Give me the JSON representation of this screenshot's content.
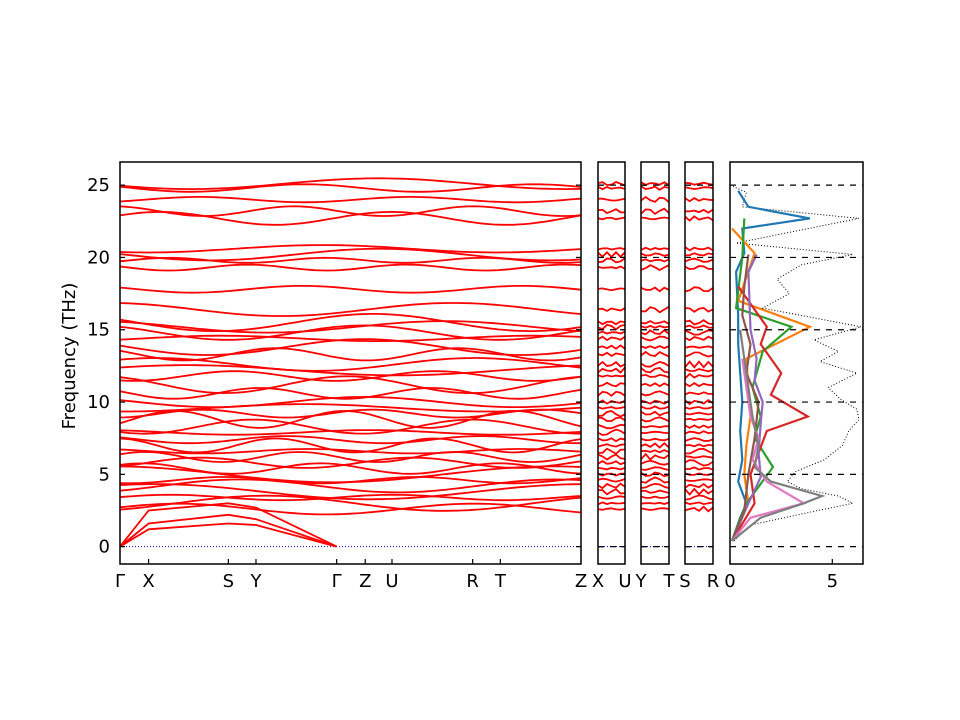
{
  "chart_data": [
    {
      "type": "line",
      "name": "phonon-band-structure",
      "ylabel": "Frequency (THz)",
      "ylim": [
        -1.2,
        26.6
      ],
      "yticks": [
        0,
        5,
        10,
        15,
        20,
        25
      ],
      "segments": [
        {
          "labels": [
            "Γ",
            "X",
            "S",
            "Y",
            "Γ",
            "Z",
            "U",
            "R",
            "T",
            "Z"
          ],
          "label_fracs": [
            0,
            0.062,
            0.235,
            0.295,
            0.47,
            0.532,
            0.59,
            0.765,
            0.825,
            1.0
          ],
          "grid_ticks": [
            0.062,
            0.235,
            0.295,
            0.47,
            0.532,
            0.59,
            0.765,
            0.825
          ]
        },
        {
          "labels": [
            "X",
            "U"
          ],
          "label_fracs": [
            0,
            1
          ]
        },
        {
          "labels": [
            "Y",
            "T"
          ],
          "label_fracs": [
            0,
            1
          ]
        },
        {
          "labels": [
            "S",
            "R"
          ],
          "label_fracs": [
            0,
            1
          ]
        }
      ],
      "band_color": "#ff0000",
      "zero_line_color": "#0000cc",
      "acoustic_branches": [
        {
          "x": [
            0,
            0.062,
            0.235,
            0.295,
            0.47
          ],
          "y": [
            0,
            2.5,
            3.0,
            2.7,
            0
          ]
        },
        {
          "x": [
            0,
            0.062,
            0.235,
            0.295,
            0.47
          ],
          "y": [
            0,
            1.6,
            2.2,
            1.9,
            0
          ]
        },
        {
          "x": [
            0,
            0.062,
            0.235,
            0.295,
            0.47
          ],
          "y": [
            0,
            1.2,
            1.6,
            1.5,
            0
          ]
        }
      ],
      "band_levels": [
        25.1,
        24.8,
        24.0,
        23.2,
        22.7,
        20.6,
        20.2,
        19.8,
        19.3,
        17.8,
        16.4,
        15.5,
        15.2,
        14.8,
        14.4,
        13.8,
        13.3,
        12.6,
        12.2,
        11.8,
        11.2,
        10.6,
        10.0,
        9.6,
        9.2,
        8.8,
        8.3,
        7.9,
        7.4,
        7.0,
        6.6,
        6.2,
        5.8,
        5.4,
        5.0,
        4.6,
        4.2,
        3.8,
        3.4,
        3.0,
        2.6
      ]
    },
    {
      "type": "line",
      "name": "phonon-dos",
      "xlim": [
        0,
        6.5
      ],
      "xticks": [
        0,
        5
      ],
      "ylim": [
        -1.2,
        26.6
      ],
      "total_dos": {
        "style": "dotted",
        "color": "#000000",
        "freq": [
          0.4,
          1.5,
          2.5,
          3.0,
          3.5,
          4.0,
          4.5,
          5.2,
          6.0,
          7.0,
          8.0,
          8.8,
          9.5,
          10.2,
          11.0,
          12.0,
          12.8,
          13.5,
          14.3,
          15.2,
          16.5,
          17.5,
          18.5,
          19.5,
          20.2,
          21.0,
          22.7,
          23.5,
          24.5,
          25.0
        ],
        "dos": [
          0.2,
          1.0,
          4.3,
          6.0,
          5.3,
          3.5,
          2.8,
          3.2,
          4.6,
          5.5,
          5.8,
          6.3,
          6.2,
          5.4,
          4.8,
          6.2,
          4.4,
          5.3,
          4.1,
          6.4,
          1.6,
          2.9,
          2.3,
          3.5,
          6.0,
          0.3,
          6.3,
          0.6,
          0.8,
          0.0
        ]
      },
      "partial_dos": [
        {
          "color": "#1f77b4",
          "freq": [
            0.4,
            2.0,
            3.0,
            4.5,
            6.0,
            8.0,
            10.0,
            12.0,
            14.0,
            16.0,
            19.0,
            20.3,
            22.0,
            22.7,
            23.5,
            24.6
          ],
          "dos": [
            0.1,
            0.5,
            0.8,
            0.4,
            0.6,
            0.5,
            0.6,
            0.5,
            0.4,
            0.4,
            0.3,
            0.7,
            0.6,
            3.9,
            0.9,
            0.4
          ]
        },
        {
          "color": "#ff7f0e",
          "freq": [
            0.4,
            3.0,
            5.0,
            7.0,
            9.0,
            11.0,
            13.0,
            15.2,
            17.0,
            20.3,
            22.0
          ],
          "dos": [
            0.1,
            0.9,
            0.7,
            0.8,
            1.0,
            0.9,
            0.8,
            3.9,
            0.4,
            1.2,
            0.1
          ]
        },
        {
          "color": "#2ca02c",
          "freq": [
            0.4,
            3.0,
            5.5,
            7.5,
            9.0,
            11.0,
            13.5,
            15.2,
            16.5,
            20.0,
            22.7
          ],
          "dos": [
            0.1,
            0.8,
            2.1,
            1.2,
            1.5,
            1.1,
            1.6,
            3.0,
            0.3,
            0.6,
            0.7
          ]
        },
        {
          "color": "#d62728",
          "freq": [
            0.4,
            3.0,
            5.0,
            8.0,
            9.0,
            10.5,
            12.0,
            14.0,
            15.2,
            18.0
          ],
          "dos": [
            0.1,
            1.2,
            1.0,
            1.8,
            3.8,
            2.0,
            2.5,
            1.5,
            1.8,
            0.4
          ]
        },
        {
          "color": "#9467bd",
          "freq": [
            0.4,
            3.0,
            4.8,
            6.5,
            8.5,
            10.0,
            11.5,
            13.0,
            15.0,
            19.0,
            20.2
          ],
          "dos": [
            0.1,
            0.9,
            1.5,
            1.4,
            1.5,
            1.6,
            1.2,
            1.3,
            1.0,
            0.9,
            1.3
          ]
        },
        {
          "color": "#8c564b",
          "freq": [
            0.4,
            2.5,
            5.0,
            7.5,
            10.0,
            12.0,
            14.0,
            16.0,
            18.0,
            20.2
          ],
          "dos": [
            0.1,
            0.7,
            0.9,
            1.2,
            1.4,
            0.8,
            1.0,
            0.6,
            0.7,
            0.9
          ]
        },
        {
          "color": "#e377c2",
          "freq": [
            0.4,
            2.0,
            3.0,
            4.5,
            6.0,
            7.5,
            9.0,
            11.0,
            13.0
          ],
          "dos": [
            0.1,
            1.0,
            3.6,
            1.8,
            1.1,
            1.4,
            1.0,
            0.8,
            0.6
          ]
        },
        {
          "color": "#7f7f7f",
          "freq": [
            0.4,
            2.0,
            3.0,
            3.5,
            4.5,
            5.5,
            7.0,
            9.0,
            11.0,
            13.0,
            15.0
          ],
          "dos": [
            0.1,
            1.5,
            3.6,
            4.5,
            2.0,
            1.2,
            1.4,
            1.1,
            0.9,
            0.7,
            0.5
          ]
        }
      ]
    }
  ]
}
